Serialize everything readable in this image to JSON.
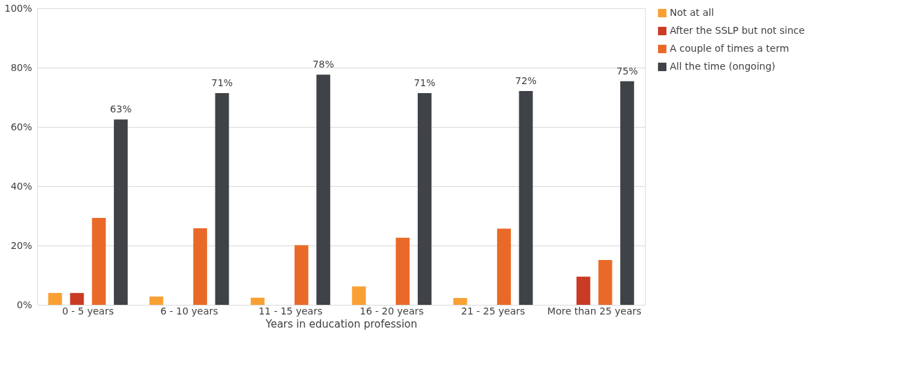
{
  "chart_data": {
    "type": "bar",
    "xlabel": "Years in education profession",
    "categories": [
      "0 - 5 years",
      "6 - 10 years",
      "11 - 15 years",
      "16 - 20 years",
      "21 - 25 years",
      "More than 25 years"
    ],
    "series": [
      {
        "name": "Not at all",
        "color": "#f9a033",
        "values": [
          4.0,
          2.8,
          2.4,
          6.2,
          2.3,
          null
        ]
      },
      {
        "name": "After the SSLP but not since",
        "color": "#c93b24",
        "values": [
          4.0,
          null,
          null,
          null,
          null,
          9.5
        ]
      },
      {
        "name": "A couple of times a term",
        "color": "#e96a28",
        "values": [
          29.3,
          25.8,
          20.1,
          22.6,
          25.7,
          15.1
        ]
      },
      {
        "name": "All the time (ongoing)",
        "color": "#3f4347",
        "values": [
          62.5,
          71.4,
          77.6,
          71.4,
          72.1,
          75.4
        ],
        "value_labels": [
          "63%",
          "71%",
          "78%",
          "71%",
          "72%",
          "75%"
        ]
      }
    ],
    "ylim": [
      0,
      100
    ],
    "yticks": [
      {
        "value": 0,
        "label": "0%"
      },
      {
        "value": 20,
        "label": "20%"
      },
      {
        "value": 40,
        "label": "40%"
      },
      {
        "value": 60,
        "label": "60%"
      },
      {
        "value": 80,
        "label": "80%"
      },
      {
        "value": 100,
        "label": "100%"
      }
    ],
    "grid": "y",
    "legend": "right"
  }
}
